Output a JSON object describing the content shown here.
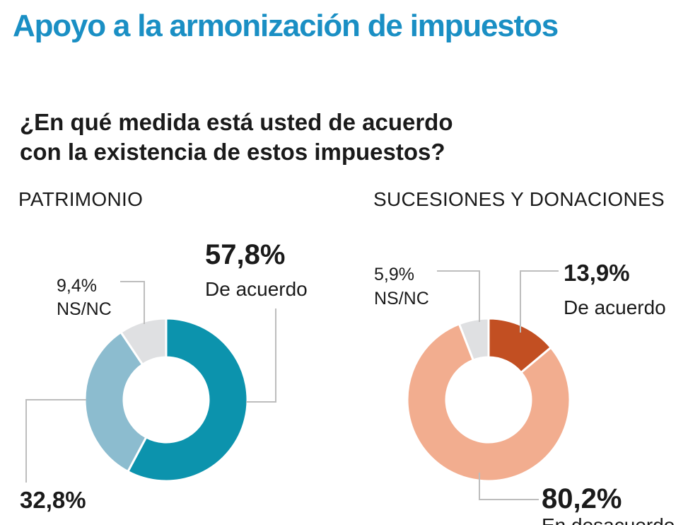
{
  "title": "Apoyo a la armonización de impuestos",
  "question": [
    "¿En qué medida está usted de acuerdo",
    "con la existencia de estos impuestos?"
  ],
  "chart_data": [
    {
      "type": "pie",
      "title": "PATRIMONIO",
      "slices": [
        {
          "label": "De acuerdo",
          "value": 57.8,
          "display": "57,8%",
          "color": "#0c93ad"
        },
        {
          "label": "",
          "value": 32.8,
          "display": "32,8%",
          "color": "#8cbccf"
        },
        {
          "label": "NS/NC",
          "value": 9.4,
          "display": "9,4%",
          "color": "#dfe0e2"
        }
      ]
    },
    {
      "type": "pie",
      "title": "SUCESIONES Y DONACIONES",
      "slices": [
        {
          "label": "De acuerdo",
          "value": 13.9,
          "display": "13,9%",
          "color": "#c24f22"
        },
        {
          "label": "En desacuerdo",
          "value": 80.2,
          "display": "80,2%",
          "color": "#f2ad8f"
        },
        {
          "label": "NS/NC",
          "value": 5.9,
          "display": "5,9%",
          "color": "#dfe0e2"
        }
      ]
    }
  ]
}
